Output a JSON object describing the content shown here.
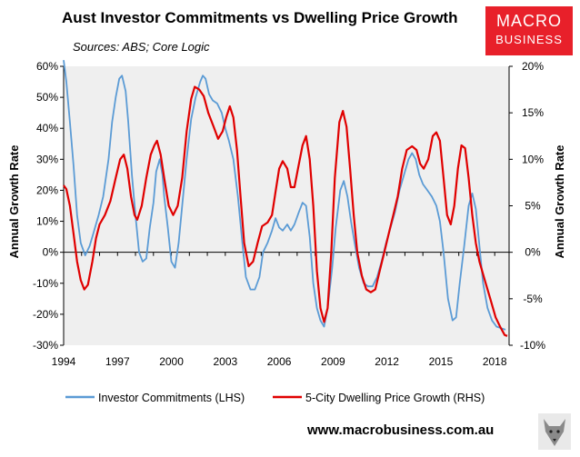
{
  "header": {
    "title": "Aust Investor Commitments vs Dwelling Price Growth",
    "subtitle": "Sources: ABS; Core Logic",
    "logo_line1": "MACRO",
    "logo_line2": "BUSINESS"
  },
  "footer": {
    "url": "www.macrobusiness.com.au"
  },
  "colors": {
    "lhs": "#5b9bd5",
    "rhs": "#e00000",
    "plot_bg": "#efefef"
  },
  "chart_data": {
    "type": "line",
    "title": "Aust Investor Commitments vs Dwelling Price Growth",
    "ylabel_left": "Annual Growth Rate",
    "ylabel_right": "Annual Growth Rate",
    "xlim": [
      1994,
      2018.8
    ],
    "ylim_left": [
      -30,
      60
    ],
    "ylim_right": [
      -10,
      20
    ],
    "x_ticks": [
      "1994",
      "1997",
      "2000",
      "2003",
      "2006",
      "2009",
      "2012",
      "2015",
      "2018"
    ],
    "y_ticks_left": [
      "60%",
      "50%",
      "40%",
      "30%",
      "20%",
      "10%",
      "0%",
      "-10%",
      "-20%",
      "-30%"
    ],
    "y_ticks_right": [
      "20%",
      "15%",
      "10%",
      "5%",
      "0%",
      "-5%",
      "-10%"
    ],
    "series": [
      {
        "name": "Investor Commitments (LHS)",
        "axis": "left",
        "points": [
          [
            1994.0,
            62
          ],
          [
            1994.15,
            55
          ],
          [
            1994.35,
            42
          ],
          [
            1994.55,
            28
          ],
          [
            1994.75,
            12
          ],
          [
            1994.95,
            3
          ],
          [
            1995.2,
            -1
          ],
          [
            1995.45,
            2
          ],
          [
            1995.7,
            7
          ],
          [
            1995.95,
            12
          ],
          [
            1996.2,
            18
          ],
          [
            1996.5,
            30
          ],
          [
            1996.7,
            42
          ],
          [
            1996.9,
            50
          ],
          [
            1997.1,
            56
          ],
          [
            1997.25,
            57
          ],
          [
            1997.45,
            52
          ],
          [
            1997.6,
            42
          ],
          [
            1997.8,
            25
          ],
          [
            1998.0,
            12
          ],
          [
            1998.2,
            0
          ],
          [
            1998.4,
            -3
          ],
          [
            1998.6,
            -2
          ],
          [
            1998.8,
            8
          ],
          [
            1999.0,
            16
          ],
          [
            1999.15,
            26
          ],
          [
            1999.35,
            30
          ],
          [
            1999.5,
            25
          ],
          [
            1999.6,
            18
          ],
          [
            1999.8,
            8
          ],
          [
            2000.0,
            -3
          ],
          [
            2000.2,
            -5
          ],
          [
            2000.4,
            3
          ],
          [
            2000.6,
            15
          ],
          [
            2000.85,
            30
          ],
          [
            2001.1,
            43
          ],
          [
            2001.35,
            50
          ],
          [
            2001.6,
            55
          ],
          [
            2001.75,
            57
          ],
          [
            2001.9,
            56
          ],
          [
            2002.1,
            51
          ],
          [
            2002.3,
            49
          ],
          [
            2002.55,
            48
          ],
          [
            2002.8,
            45
          ],
          [
            2003.0,
            40
          ],
          [
            2003.2,
            36
          ],
          [
            2003.45,
            30
          ],
          [
            2003.7,
            18
          ],
          [
            2003.95,
            3
          ],
          [
            2004.15,
            -8
          ],
          [
            2004.4,
            -12
          ],
          [
            2004.65,
            -12
          ],
          [
            2004.9,
            -8
          ],
          [
            2005.1,
            0
          ],
          [
            2005.35,
            3
          ],
          [
            2005.6,
            7
          ],
          [
            2005.8,
            11
          ],
          [
            2006.0,
            8
          ],
          [
            2006.2,
            7
          ],
          [
            2006.45,
            9
          ],
          [
            2006.65,
            7
          ],
          [
            2006.85,
            9
          ],
          [
            2007.1,
            13
          ],
          [
            2007.3,
            16
          ],
          [
            2007.5,
            15
          ],
          [
            2007.7,
            5
          ],
          [
            2007.9,
            -10
          ],
          [
            2008.1,
            -18
          ],
          [
            2008.3,
            -22
          ],
          [
            2008.5,
            -24
          ],
          [
            2008.7,
            -18
          ],
          [
            2008.95,
            -5
          ],
          [
            2009.15,
            8
          ],
          [
            2009.4,
            20
          ],
          [
            2009.6,
            23
          ],
          [
            2009.8,
            18
          ],
          [
            2010.0,
            10
          ],
          [
            2010.2,
            3
          ],
          [
            2010.45,
            -5
          ],
          [
            2010.7,
            -10
          ],
          [
            2010.95,
            -11
          ],
          [
            2011.2,
            -11
          ],
          [
            2011.45,
            -8
          ],
          [
            2011.7,
            -3
          ],
          [
            2011.95,
            3
          ],
          [
            2012.2,
            8
          ],
          [
            2012.45,
            13
          ],
          [
            2012.7,
            20
          ],
          [
            2012.95,
            25
          ],
          [
            2013.2,
            30
          ],
          [
            2013.4,
            32
          ],
          [
            2013.6,
            30
          ],
          [
            2013.8,
            25
          ],
          [
            2014.0,
            22
          ],
          [
            2014.25,
            20
          ],
          [
            2014.5,
            18
          ],
          [
            2014.75,
            15
          ],
          [
            2014.95,
            10
          ],
          [
            2015.15,
            0
          ],
          [
            2015.4,
            -15
          ],
          [
            2015.65,
            -22
          ],
          [
            2015.85,
            -21
          ],
          [
            2016.05,
            -10
          ],
          [
            2016.3,
            2
          ],
          [
            2016.55,
            15
          ],
          [
            2016.75,
            19
          ],
          [
            2016.95,
            14
          ],
          [
            2017.15,
            2
          ],
          [
            2017.35,
            -10
          ],
          [
            2017.6,
            -18
          ],
          [
            2017.85,
            -22
          ],
          [
            2018.1,
            -24
          ],
          [
            2018.35,
            -24.5
          ],
          [
            2018.6,
            -25
          ]
        ]
      },
      {
        "name": "5-City Dwelling Price Growth (RHS)",
        "axis": "right",
        "points": [
          [
            1994.0,
            7.2
          ],
          [
            1994.15,
            6.8
          ],
          [
            1994.35,
            5.0
          ],
          [
            1994.55,
            2.0
          ],
          [
            1994.75,
            -1.0
          ],
          [
            1994.95,
            -3.0
          ],
          [
            1995.15,
            -4.0
          ],
          [
            1995.35,
            -3.5
          ],
          [
            1995.6,
            -1.0
          ],
          [
            1995.8,
            1.5
          ],
          [
            1996.0,
            3.0
          ],
          [
            1996.3,
            4.0
          ],
          [
            1996.6,
            5.5
          ],
          [
            1996.9,
            8.0
          ],
          [
            1997.15,
            10.0
          ],
          [
            1997.35,
            10.5
          ],
          [
            1997.55,
            9.0
          ],
          [
            1997.75,
            6.0
          ],
          [
            1997.95,
            4.0
          ],
          [
            1998.1,
            3.5
          ],
          [
            1998.35,
            5.0
          ],
          [
            1998.6,
            8.0
          ],
          [
            1998.85,
            10.5
          ],
          [
            1999.05,
            11.5
          ],
          [
            1999.2,
            12.0
          ],
          [
            1999.4,
            10.5
          ],
          [
            1999.6,
            8.0
          ],
          [
            1999.85,
            5.0
          ],
          [
            2000.1,
            4.0
          ],
          [
            2000.35,
            5.0
          ],
          [
            2000.6,
            8.0
          ],
          [
            2000.85,
            13.0
          ],
          [
            2001.1,
            16.5
          ],
          [
            2001.3,
            17.8
          ],
          [
            2001.55,
            17.5
          ],
          [
            2001.8,
            16.8
          ],
          [
            2002.05,
            15.0
          ],
          [
            2002.35,
            13.5
          ],
          [
            2002.6,
            12.2
          ],
          [
            2002.85,
            13.0
          ],
          [
            2003.05,
            14.5
          ],
          [
            2003.25,
            15.7
          ],
          [
            2003.45,
            14.5
          ],
          [
            2003.65,
            11.0
          ],
          [
            2003.85,
            6.0
          ],
          [
            2004.05,
            1.0
          ],
          [
            2004.3,
            -1.5
          ],
          [
            2004.55,
            -1.0
          ],
          [
            2004.8,
            1.0
          ],
          [
            2005.05,
            2.8
          ],
          [
            2005.35,
            3.2
          ],
          [
            2005.6,
            4.0
          ],
          [
            2005.8,
            6.5
          ],
          [
            2006.0,
            9.0
          ],
          [
            2006.2,
            9.8
          ],
          [
            2006.45,
            9.0
          ],
          [
            2006.65,
            7.0
          ],
          [
            2006.85,
            7.0
          ],
          [
            2007.05,
            9.0
          ],
          [
            2007.3,
            11.5
          ],
          [
            2007.5,
            12.5
          ],
          [
            2007.7,
            10.0
          ],
          [
            2007.9,
            5.0
          ],
          [
            2008.1,
            -2.0
          ],
          [
            2008.3,
            -6.0
          ],
          [
            2008.5,
            -7.5
          ],
          [
            2008.7,
            -6.0
          ],
          [
            2008.9,
            0.0
          ],
          [
            2009.1,
            8.0
          ],
          [
            2009.35,
            14.0
          ],
          [
            2009.55,
            15.2
          ],
          [
            2009.75,
            13.5
          ],
          [
            2009.95,
            9.0
          ],
          [
            2010.15,
            4.0
          ],
          [
            2010.35,
            0.0
          ],
          [
            2010.6,
            -2.5
          ],
          [
            2010.85,
            -4.0
          ],
          [
            2011.1,
            -4.3
          ],
          [
            2011.35,
            -4.0
          ],
          [
            2011.6,
            -2.0
          ],
          [
            2011.85,
            0.0
          ],
          [
            2012.1,
            2.0
          ],
          [
            2012.35,
            4.0
          ],
          [
            2012.6,
            6.0
          ],
          [
            2012.85,
            9.0
          ],
          [
            2013.1,
            11.0
          ],
          [
            2013.4,
            11.4
          ],
          [
            2013.65,
            11.0
          ],
          [
            2013.85,
            9.5
          ],
          [
            2014.05,
            9.0
          ],
          [
            2014.3,
            10.0
          ],
          [
            2014.55,
            12.5
          ],
          [
            2014.75,
            12.9
          ],
          [
            2014.95,
            12.0
          ],
          [
            2015.15,
            8.0
          ],
          [
            2015.35,
            4.0
          ],
          [
            2015.55,
            3.0
          ],
          [
            2015.75,
            5.0
          ],
          [
            2015.95,
            9.0
          ],
          [
            2016.15,
            11.5
          ],
          [
            2016.35,
            11.2
          ],
          [
            2016.55,
            8.0
          ],
          [
            2016.75,
            4.0
          ],
          [
            2016.95,
            1.0
          ],
          [
            2017.15,
            -1.0
          ],
          [
            2017.45,
            -3.0
          ],
          [
            2017.75,
            -5.0
          ],
          [
            2018.05,
            -7.0
          ],
          [
            2018.3,
            -8.0
          ],
          [
            2018.55,
            -8.9
          ],
          [
            2018.7,
            -9.0
          ]
        ]
      }
    ]
  }
}
